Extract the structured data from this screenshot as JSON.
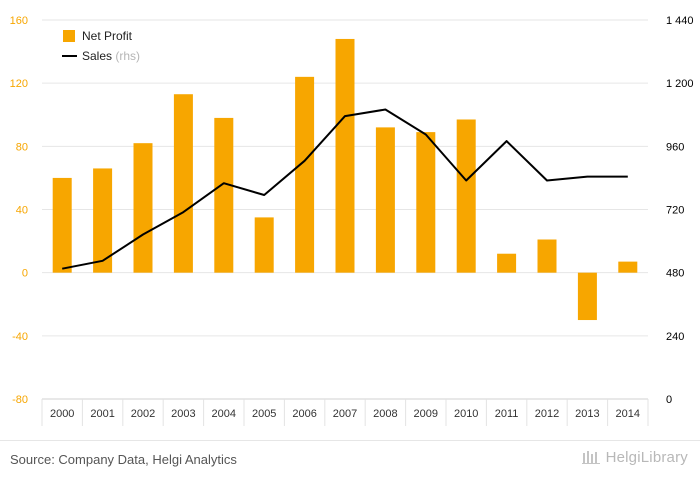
{
  "chart_data": {
    "type": "bar",
    "categories": [
      "2000",
      "2001",
      "2002",
      "2003",
      "2004",
      "2005",
      "2006",
      "2007",
      "2008",
      "2009",
      "2010",
      "2011",
      "2012",
      "2013",
      "2014"
    ],
    "series": [
      {
        "name": "Net Profit",
        "type": "bar",
        "axis": "left",
        "color": "#F7A600",
        "values": [
          60,
          66,
          82,
          113,
          98,
          35,
          124,
          148,
          92,
          89,
          97,
          12,
          21,
          -30,
          7
        ]
      },
      {
        "name": "Sales",
        "type": "line",
        "axis": "right",
        "color": "#000000",
        "values": [
          495,
          525,
          625,
          710,
          820,
          775,
          905,
          1075,
          1100,
          1005,
          830,
          980,
          830,
          845,
          845
        ]
      }
    ],
    "ylim_left": [
      -80,
      160
    ],
    "yticks_left": [
      -80,
      -40,
      0,
      40,
      80,
      120,
      160
    ],
    "ylim_right": [
      0,
      1440
    ],
    "yticks_right": [
      0,
      240,
      480,
      720,
      960,
      1200,
      1440
    ],
    "ytick_labels_right": [
      "0",
      "240",
      "480",
      "720",
      "960",
      "1 200",
      "1 440"
    ],
    "legend": {
      "position": "top-left",
      "entries": [
        {
          "label": "Net Profit",
          "suffix": ""
        },
        {
          "label": "Sales",
          "suffix": "(rhs)"
        }
      ]
    },
    "grid": true,
    "left_axis_color": "#F7A600",
    "right_axis_color": "#000000",
    "grid_color": "#e6e6e6"
  },
  "footer": {
    "source": "Source: Company Data, Helgi Analytics",
    "brand": "HelgiLibrary"
  }
}
